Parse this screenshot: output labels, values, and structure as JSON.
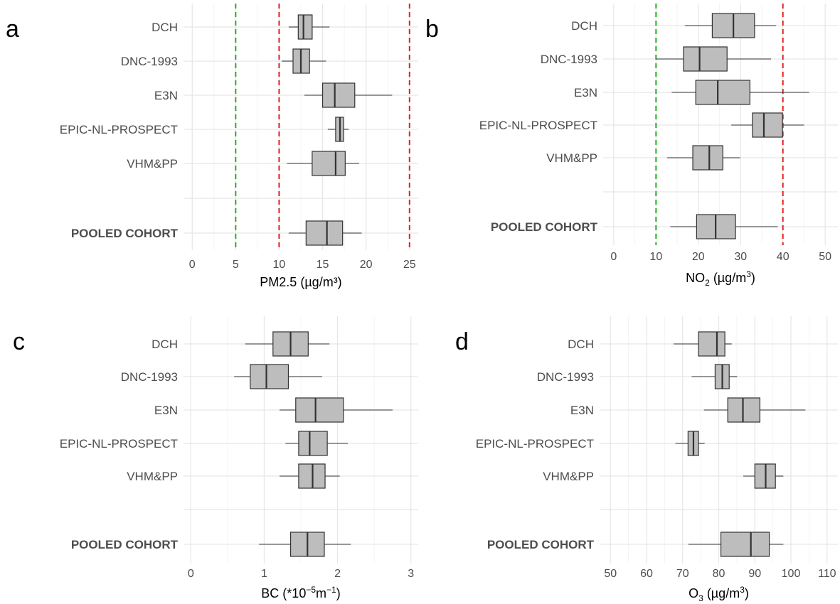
{
  "chart_data": [
    {
      "panel": "a",
      "type": "boxplot",
      "xlabel": "PM2.5 (µg/m³)",
      "xlim": [
        -1,
        26
      ],
      "xticks": [
        0,
        5,
        10,
        15,
        20,
        25
      ],
      "grid": true,
      "reference_lines": [
        {
          "value": 5,
          "color": "#22b022"
        },
        {
          "value": 10,
          "color": "#e02020"
        },
        {
          "value": 25,
          "color": "#e02020"
        }
      ],
      "categories": [
        "DCH",
        "DNC-1993",
        "E3N",
        "EPIC-NL-PROSPECT",
        "VHM&PP",
        "POOLED COHORT"
      ],
      "bold_categories": [
        "POOLED COHORT"
      ],
      "boxes": [
        {
          "min": 11.1,
          "q1": 12.2,
          "median": 12.8,
          "q3": 13.8,
          "max": 15.8
        },
        {
          "min": 10.3,
          "q1": 11.6,
          "median": 12.5,
          "q3": 13.5,
          "max": 15.4
        },
        {
          "min": 12.9,
          "q1": 15.0,
          "median": 16.4,
          "q3": 18.7,
          "max": 23.0
        },
        {
          "min": 15.6,
          "q1": 16.5,
          "median": 17.0,
          "q3": 17.4,
          "max": 18.0
        },
        {
          "min": 10.9,
          "q1": 13.8,
          "median": 16.5,
          "q3": 17.6,
          "max": 19.2
        },
        {
          "min": 11.1,
          "q1": 13.1,
          "median": 15.5,
          "q3": 17.3,
          "max": 19.5
        }
      ]
    },
    {
      "panel": "b",
      "type": "boxplot",
      "xlabel_main": "NO",
      "xlabel_sub": "2",
      "xlabel_rest": " (µg/m",
      "xlabel_sup": "3",
      "xlabel_end": ")",
      "xlim": [
        -2.5,
        53
      ],
      "xticks": [
        0,
        10,
        20,
        30,
        40,
        50
      ],
      "grid": true,
      "reference_lines": [
        {
          "value": 10,
          "color": "#22b022"
        },
        {
          "value": 40,
          "color": "#e02020"
        }
      ],
      "categories": [
        "DCH",
        "DNC-1993",
        "E3N",
        "EPIC-NL-PROSPECT",
        "VHM&PP",
        "POOLED COHORT"
      ],
      "bold_categories": [
        "POOLED COHORT"
      ],
      "boxes": [
        {
          "min": 16.8,
          "q1": 23.3,
          "median": 28.3,
          "q3": 33.3,
          "max": 38.4
        },
        {
          "min": 10.0,
          "q1": 16.5,
          "median": 20.3,
          "q3": 26.8,
          "max": 37.2
        },
        {
          "min": 13.7,
          "q1": 19.4,
          "median": 24.6,
          "q3": 32.2,
          "max": 46.2
        },
        {
          "min": 27.8,
          "q1": 32.8,
          "median": 35.5,
          "q3": 39.9,
          "max": 45.0
        },
        {
          "min": 12.6,
          "q1": 18.7,
          "median": 22.6,
          "q3": 25.8,
          "max": 29.9
        },
        {
          "min": 13.4,
          "q1": 19.6,
          "median": 24.1,
          "q3": 28.8,
          "max": 38.8
        }
      ]
    },
    {
      "panel": "c",
      "type": "boxplot",
      "xlabel_main": "BC (*10",
      "xlabel_sup": "−5",
      "xlabel_rest": "m",
      "xlabel_sup2": "−1",
      "xlabel_end": ")",
      "xlim": [
        -0.1,
        3.1
      ],
      "xticks": [
        0,
        1,
        2,
        3
      ],
      "grid": true,
      "reference_lines": [],
      "categories": [
        "DCH",
        "DNC-1993",
        "E3N",
        "EPIC-NL-PROSPECT",
        "VHM&PP",
        "POOLED COHORT"
      ],
      "bold_categories": [
        "POOLED COHORT"
      ],
      "boxes": [
        {
          "min": 0.74,
          "q1": 1.12,
          "median": 1.36,
          "q3": 1.6,
          "max": 1.89
        },
        {
          "min": 0.59,
          "q1": 0.81,
          "median": 1.03,
          "q3": 1.33,
          "max": 1.79
        },
        {
          "min": 1.21,
          "q1": 1.43,
          "median": 1.7,
          "q3": 2.08,
          "max": 2.75
        },
        {
          "min": 1.29,
          "q1": 1.47,
          "median": 1.62,
          "q3": 1.86,
          "max": 2.14
        },
        {
          "min": 1.21,
          "q1": 1.47,
          "median": 1.66,
          "q3": 1.83,
          "max": 2.03
        },
        {
          "min": 0.93,
          "q1": 1.36,
          "median": 1.59,
          "q3": 1.82,
          "max": 2.18
        }
      ]
    },
    {
      "panel": "d",
      "type": "boxplot",
      "xlabel_main": "O",
      "xlabel_sub": "3",
      "xlabel_rest": " (µg/m",
      "xlabel_sup": "3",
      "xlabel_end": ")",
      "xlim": [
        47,
        113
      ],
      "xticks": [
        50,
        60,
        70,
        80,
        90,
        100,
        110
      ],
      "grid": true,
      "reference_lines": [],
      "categories": [
        "DCH",
        "DNC-1993",
        "E3N",
        "EPIC-NL-PROSPECT",
        "VHM&PP",
        "POOLED COHORT"
      ],
      "bold_categories": [
        "POOLED COHORT"
      ],
      "boxes": [
        {
          "min": 67.5,
          "q1": 74.4,
          "median": 79.5,
          "q3": 81.7,
          "max": 83.6
        },
        {
          "min": 72.5,
          "q1": 79.0,
          "median": 81.0,
          "q3": 82.9,
          "max": 85.1
        },
        {
          "min": 75.9,
          "q1": 82.5,
          "median": 86.7,
          "q3": 91.4,
          "max": 104.0
        },
        {
          "min": 68.0,
          "q1": 71.5,
          "median": 73.0,
          "q3": 74.4,
          "max": 76.1
        },
        {
          "min": 86.8,
          "q1": 90.0,
          "median": 93.0,
          "q3": 95.7,
          "max": 97.9
        },
        {
          "min": 71.6,
          "q1": 80.6,
          "median": 88.9,
          "q3": 94.0,
          "max": 97.9
        }
      ]
    }
  ]
}
